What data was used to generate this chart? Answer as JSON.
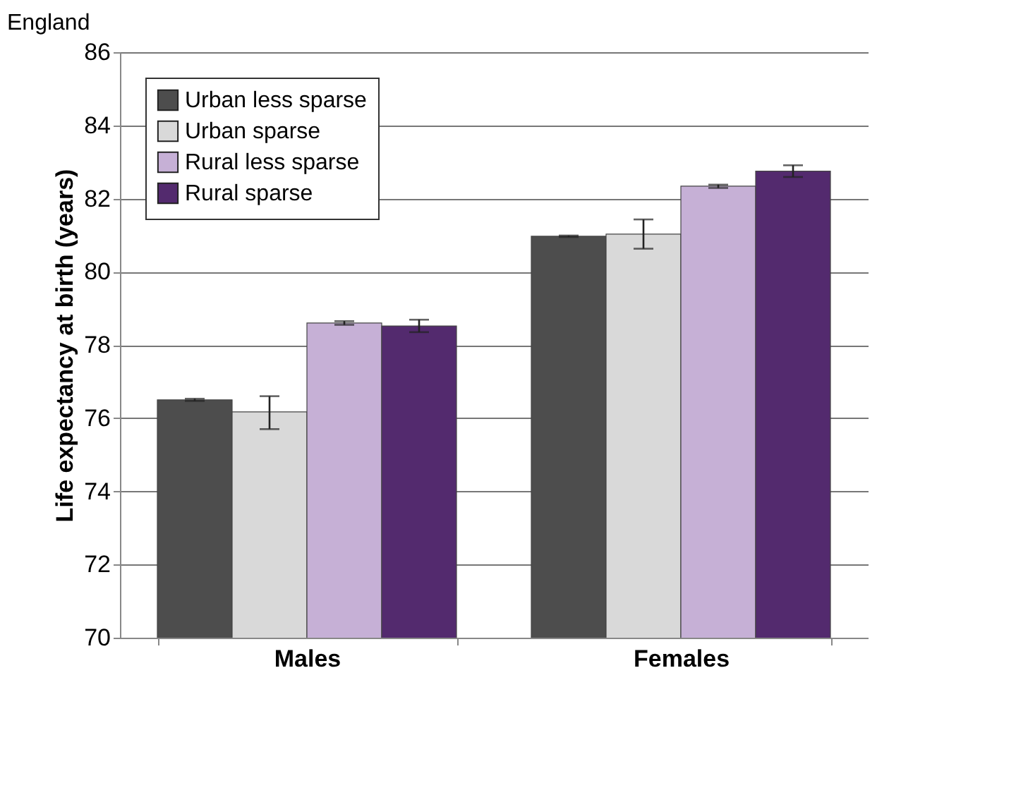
{
  "chart_data": {
    "type": "bar",
    "title": "England",
    "ylabel": "Life expectancy at birth (years)",
    "categories": [
      "Males",
      "Females"
    ],
    "series": [
      {
        "name": "Urban less sparse",
        "color": "#4d4d4d",
        "values": [
          76.5,
          80.97
        ],
        "errors": [
          [
            76.47,
            76.53
          ],
          [
            80.95,
            80.99
          ]
        ]
      },
      {
        "name": "Urban sparse",
        "color": "#d9d9d9",
        "values": [
          76.17,
          81.03
        ],
        "errors": [
          [
            75.7,
            76.6
          ],
          [
            80.63,
            81.43
          ]
        ]
      },
      {
        "name": "Rural less sparse",
        "color": "#c6b0d6",
        "values": [
          78.6,
          82.34
        ],
        "errors": [
          [
            78.55,
            78.65
          ],
          [
            82.29,
            82.38
          ]
        ]
      },
      {
        "name": "Rural sparse",
        "color": "#532a6e",
        "values": [
          78.52,
          82.75
        ],
        "errors": [
          [
            78.35,
            78.69
          ],
          [
            82.59,
            82.91
          ]
        ]
      }
    ],
    "ylim": [
      70,
      86
    ],
    "yticks": [
      70,
      72,
      74,
      76,
      78,
      80,
      82,
      84,
      86
    ],
    "grid": "y",
    "legend": "top left"
  }
}
